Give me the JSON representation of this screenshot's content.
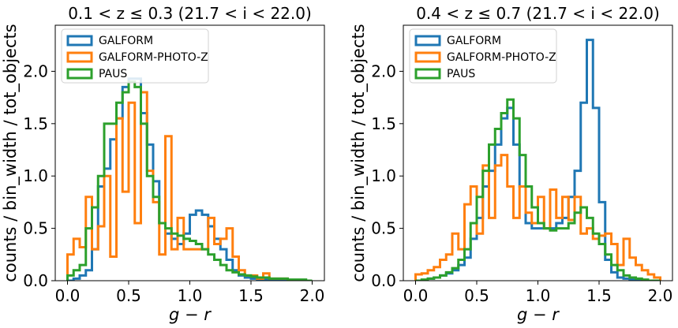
{
  "chart_data": [
    {
      "type": "step-histogram",
      "title": "0.1 < z ≤ 0.3  (21.7 < i < 22.0)",
      "xlabel": "g − r",
      "ylabel": "counts / bin_width / tot_objects",
      "xlim": [
        -0.1,
        2.1
      ],
      "ylim": [
        0,
        2.44
      ],
      "xticks": [
        0.0,
        0.5,
        1.0,
        1.5,
        2.0
      ],
      "xtick_labels": [
        "0.0",
        "0.5",
        "1.0",
        "1.5",
        "2.0"
      ],
      "yticks": [
        0.0,
        0.5,
        1.0,
        1.5,
        2.0
      ],
      "ytick_labels": [
        "0.0",
        "0.5",
        "1.0",
        "1.5",
        "2.0"
      ],
      "legend_position": "upper-left",
      "bin_width": 0.05,
      "series": [
        {
          "name": "GALFORM",
          "color": "#1f77b4",
          "x": [
            0.0,
            0.05,
            0.1,
            0.15,
            0.2,
            0.25,
            0.3,
            0.35,
            0.4,
            0.45,
            0.5,
            0.55,
            0.6,
            0.65,
            0.7,
            0.75,
            0.8,
            0.85,
            0.9,
            0.95,
            1.0,
            1.05,
            1.1,
            1.15,
            1.2,
            1.25,
            1.3,
            1.35,
            1.4,
            1.45,
            1.5,
            1.55,
            1.6,
            1.65,
            1.7,
            1.75,
            1.8,
            1.85,
            1.9,
            1.95
          ],
          "values": [
            0.0,
            0.02,
            0.05,
            0.1,
            0.3,
            0.9,
            1.07,
            1.35,
            1.55,
            1.85,
            1.93,
            1.93,
            1.6,
            1.3,
            0.95,
            0.55,
            0.45,
            0.4,
            0.35,
            0.45,
            0.63,
            0.67,
            0.63,
            0.52,
            0.4,
            0.3,
            0.2,
            0.1,
            0.05,
            0.03,
            0.02,
            0.01,
            0.01,
            0.01,
            0.0,
            0.0,
            0.0,
            0.0,
            0.0,
            0.0
          ]
        },
        {
          "name": "GALFORM-PHOTO-Z",
          "color": "#ff7f0e",
          "x": [
            0.0,
            0.05,
            0.1,
            0.15,
            0.2,
            0.25,
            0.3,
            0.35,
            0.4,
            0.45,
            0.5,
            0.55,
            0.6,
            0.65,
            0.7,
            0.75,
            0.8,
            0.85,
            0.9,
            0.95,
            1.0,
            1.05,
            1.1,
            1.15,
            1.2,
            1.25,
            1.3,
            1.35,
            1.4,
            1.45,
            1.5,
            1.55,
            1.6,
            1.65,
            1.7,
            1.75,
            1.8,
            1.85,
            1.9,
            1.95
          ],
          "values": [
            0.25,
            0.4,
            0.32,
            0.8,
            0.3,
            0.52,
            1.0,
            0.23,
            1.55,
            0.85,
            1.7,
            0.55,
            1.8,
            1.05,
            0.75,
            0.25,
            1.38,
            0.3,
            0.6,
            0.3,
            0.3,
            0.3,
            0.3,
            0.6,
            0.35,
            0.4,
            0.5,
            0.23,
            0.1,
            0.05,
            0.05,
            0.02,
            0.07,
            0.02,
            0.02,
            0.02,
            0.0,
            0.0,
            0.0,
            0.0
          ]
        },
        {
          "name": "PAUS",
          "color": "#2ca02c",
          "x": [
            0.0,
            0.05,
            0.1,
            0.15,
            0.2,
            0.25,
            0.3,
            0.35,
            0.4,
            0.45,
            0.5,
            0.55,
            0.6,
            0.65,
            0.7,
            0.75,
            0.8,
            0.85,
            0.9,
            0.95,
            1.0,
            1.05,
            1.1,
            1.15,
            1.2,
            1.25,
            1.3,
            1.35,
            1.4,
            1.45,
            1.5,
            1.55,
            1.6,
            1.65,
            1.7,
            1.75,
            1.8,
            1.85,
            1.9,
            1.95
          ],
          "values": [
            0.05,
            0.1,
            0.15,
            0.5,
            0.7,
            1.0,
            1.5,
            1.5,
            1.7,
            1.8,
            1.9,
            1.85,
            1.5,
            1.0,
            0.8,
            0.55,
            0.5,
            0.45,
            0.43,
            0.4,
            0.38,
            0.35,
            0.3,
            0.25,
            0.2,
            0.15,
            0.1,
            0.08,
            0.06,
            0.05,
            0.04,
            0.03,
            0.03,
            0.02,
            0.02,
            0.02,
            0.01,
            0.01,
            0.01,
            0.0
          ]
        }
      ]
    },
    {
      "type": "step-histogram",
      "title": "0.4 < z ≤ 0.7  (21.7 < i < 22.0)",
      "xlabel": "g − r",
      "ylabel": "counts / bin_width / tot_objects",
      "xlim": [
        -0.1,
        2.1
      ],
      "ylim": [
        0,
        2.44
      ],
      "xticks": [
        0.0,
        0.5,
        1.0,
        1.5,
        2.0
      ],
      "xtick_labels": [
        "0.0",
        "0.5",
        "1.0",
        "1.5",
        "2.0"
      ],
      "yticks": [
        0.0,
        0.5,
        1.0,
        1.5,
        2.0
      ],
      "ytick_labels": [
        "0.0",
        "0.5",
        "1.0",
        "1.5",
        "2.0"
      ],
      "legend_position": "upper-left",
      "bin_width": 0.05,
      "series": [
        {
          "name": "GALFORM",
          "color": "#1f77b4",
          "x": [
            0.0,
            0.05,
            0.1,
            0.15,
            0.2,
            0.25,
            0.3,
            0.35,
            0.4,
            0.45,
            0.5,
            0.55,
            0.6,
            0.65,
            0.7,
            0.75,
            0.8,
            0.85,
            0.9,
            0.95,
            1.0,
            1.05,
            1.1,
            1.15,
            1.2,
            1.25,
            1.3,
            1.35,
            1.4,
            1.45,
            1.5,
            1.55,
            1.6,
            1.65,
            1.7,
            1.75,
            1.8,
            1.85,
            1.9,
            1.95
          ],
          "values": [
            0.0,
            0.0,
            0.02,
            0.03,
            0.05,
            0.07,
            0.1,
            0.15,
            0.22,
            0.4,
            0.6,
            0.9,
            1.05,
            1.3,
            1.55,
            1.65,
            1.3,
            0.9,
            0.55,
            0.5,
            0.5,
            0.5,
            0.5,
            0.55,
            0.6,
            0.8,
            1.05,
            1.7,
            2.3,
            1.65,
            0.75,
            0.2,
            0.08,
            0.03,
            0.02,
            0.01,
            0.0,
            0.0,
            0.0,
            0.0
          ]
        },
        {
          "name": "GALFORM-PHOTO-Z",
          "color": "#ff7f0e",
          "x": [
            0.0,
            0.05,
            0.1,
            0.15,
            0.2,
            0.25,
            0.3,
            0.35,
            0.4,
            0.45,
            0.5,
            0.55,
            0.6,
            0.65,
            0.7,
            0.75,
            0.8,
            0.85,
            0.9,
            0.95,
            1.0,
            1.05,
            1.1,
            1.15,
            1.2,
            1.25,
            1.3,
            1.35,
            1.4,
            1.45,
            1.5,
            1.55,
            1.6,
            1.65,
            1.7,
            1.75,
            1.8,
            1.85,
            1.9,
            1.95
          ],
          "values": [
            0.06,
            0.07,
            0.1,
            0.13,
            0.2,
            0.25,
            0.45,
            0.3,
            0.73,
            0.9,
            0.45,
            1.1,
            0.6,
            1.1,
            1.2,
            0.9,
            0.6,
            0.9,
            0.65,
            0.55,
            0.8,
            0.5,
            0.87,
            0.6,
            0.8,
            0.58,
            0.8,
            0.45,
            0.5,
            0.4,
            0.43,
            0.45,
            0.35,
            0.15,
            0.4,
            0.22,
            0.15,
            0.1,
            0.06,
            0.03
          ]
        },
        {
          "name": "PAUS",
          "color": "#2ca02c",
          "x": [
            0.0,
            0.05,
            0.1,
            0.15,
            0.2,
            0.25,
            0.3,
            0.35,
            0.4,
            0.45,
            0.5,
            0.55,
            0.6,
            0.65,
            0.7,
            0.75,
            0.8,
            0.85,
            0.9,
            0.95,
            1.0,
            1.05,
            1.1,
            1.15,
            1.2,
            1.25,
            1.3,
            1.35,
            1.4,
            1.45,
            1.5,
            1.55,
            1.6,
            1.65,
            1.7,
            1.75,
            1.8,
            1.85,
            1.9,
            1.95
          ],
          "values": [
            0.0,
            0.01,
            0.02,
            0.03,
            0.05,
            0.08,
            0.12,
            0.2,
            0.3,
            0.55,
            0.8,
            1.05,
            1.3,
            1.45,
            1.6,
            1.73,
            1.55,
            1.2,
            0.9,
            0.7,
            0.55,
            0.5,
            0.48,
            0.5,
            0.5,
            0.55,
            0.65,
            0.7,
            0.6,
            0.45,
            0.35,
            0.25,
            0.15,
            0.1,
            0.05,
            0.03,
            0.02,
            0.01,
            0.0,
            0.0
          ]
        }
      ]
    }
  ]
}
